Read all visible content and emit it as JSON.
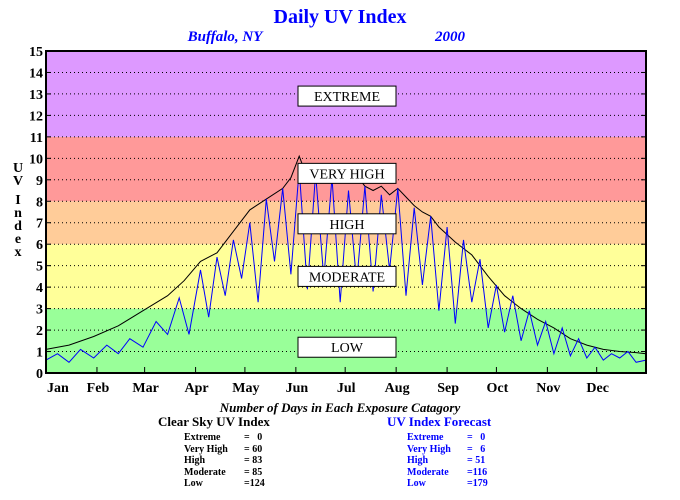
{
  "chart_data": {
    "type": "line",
    "title": "Daily UV Index",
    "location": "Buffalo, NY",
    "year": "2000",
    "ylabel": "UV Index",
    "ylim": [
      0,
      15
    ],
    "yticks": [
      0,
      1,
      2,
      3,
      4,
      5,
      6,
      7,
      8,
      9,
      10,
      11,
      12,
      13,
      14,
      15
    ],
    "xlim": [
      1,
      366
    ],
    "xticks": [
      {
        "label": "Jan",
        "day": 1
      },
      {
        "label": "Feb",
        "day": 32
      },
      {
        "label": "Mar",
        "day": 61
      },
      {
        "label": "Apr",
        "day": 92
      },
      {
        "label": "May",
        "day": 122
      },
      {
        "label": "Jun",
        "day": 153
      },
      {
        "label": "Jul",
        "day": 183
      },
      {
        "label": "Aug",
        "day": 214
      },
      {
        "label": "Sep",
        "day": 245
      },
      {
        "label": "Oct",
        "day": 275
      },
      {
        "label": "Nov",
        "day": 306
      },
      {
        "label": "Dec",
        "day": 336
      }
    ],
    "bands": [
      {
        "label": "LOW",
        "from": 0,
        "to": 3,
        "color": "#99ff99",
        "label_y": 1.2
      },
      {
        "label": "MODERATE",
        "from": 3,
        "to": 6,
        "color": "#ffff99",
        "label_y": 4.5
      },
      {
        "label": "HIGH",
        "from": 6,
        "to": 8,
        "color": "#ffcc99",
        "label_y": 6.95
      },
      {
        "label": "VERY HIGH",
        "from": 8,
        "to": 11,
        "color": "#ff9999",
        "label_y": 9.3
      },
      {
        "label": "EXTREME",
        "from": 11,
        "to": 15,
        "color": "#dd99ff",
        "label_y": 12.9
      }
    ],
    "grid": true,
    "series": [
      {
        "color": "#000000",
        "x": [
          1,
          15,
          30,
          45,
          60,
          75,
          85,
          95,
          105,
          115,
          125,
          135,
          145,
          150,
          155,
          160,
          165,
          170,
          175,
          180,
          185,
          190,
          195,
          200,
          205,
          210,
          215,
          220,
          225,
          230,
          235,
          240,
          250,
          260,
          270,
          280,
          290,
          300,
          310,
          320,
          330,
          340,
          350,
          360,
          366
        ],
        "y": [
          1.1,
          1.3,
          1.7,
          2.2,
          2.9,
          3.6,
          4.3,
          5.2,
          5.6,
          6.6,
          7.6,
          8.1,
          8.6,
          9.1,
          10.1,
          9.1,
          9.7,
          9.4,
          8.8,
          9.6,
          9.0,
          9.2,
          8.7,
          8.5,
          8.7,
          8.3,
          8.6,
          8.2,
          7.8,
          7.5,
          7.3,
          6.8,
          6.1,
          5.5,
          4.5,
          3.6,
          3.0,
          2.5,
          2.1,
          1.6,
          1.3,
          1.1,
          1.0,
          0.95,
          0.9
        ]
      },
      {
        "color": "#0000ff",
        "x": [
          1,
          8,
          15,
          22,
          30,
          38,
          45,
          52,
          60,
          68,
          75,
          82,
          88,
          95,
          100,
          105,
          110,
          115,
          120,
          125,
          130,
          135,
          140,
          145,
          150,
          155,
          160,
          165,
          170,
          175,
          180,
          185,
          190,
          195,
          200,
          205,
          210,
          215,
          220,
          225,
          230,
          235,
          240,
          245,
          250,
          255,
          260,
          265,
          270,
          275,
          280,
          285,
          290,
          295,
          300,
          305,
          310,
          315,
          320,
          325,
          330,
          335,
          340,
          345,
          350,
          355,
          360,
          366
        ],
        "y": [
          0.6,
          0.9,
          0.5,
          1.1,
          0.7,
          1.3,
          0.9,
          1.6,
          1.2,
          2.4,
          1.8,
          3.5,
          1.8,
          4.8,
          2.6,
          5.4,
          3.6,
          6.2,
          4.4,
          7.0,
          3.3,
          8.1,
          5.2,
          8.6,
          4.6,
          9.5,
          3.9,
          9.3,
          4.4,
          9.1,
          3.3,
          8.5,
          4.2,
          8.7,
          3.8,
          8.3,
          4.8,
          8.6,
          3.6,
          7.7,
          4.1,
          7.3,
          2.9,
          6.8,
          2.3,
          6.2,
          3.3,
          5.3,
          2.1,
          4.1,
          1.9,
          3.6,
          1.5,
          2.9,
          1.3,
          2.4,
          0.9,
          2.1,
          0.8,
          1.6,
          0.7,
          1.2,
          0.6,
          0.9,
          0.7,
          1.0,
          0.5,
          0.6
        ]
      }
    ]
  },
  "subtitle": "Number of Days in Each Exposure Catagory",
  "tables": [
    {
      "title": "Clear Sky UV Index",
      "color": "#000000",
      "rows": [
        {
          "label": "Extreme",
          "value": "=   0"
        },
        {
          "label": "Very High",
          "value": "= 60"
        },
        {
          "label": "High",
          "value": "= 83"
        },
        {
          "label": "Moderate",
          "value": "= 85"
        },
        {
          "label": "Low",
          "value": "=124"
        }
      ]
    },
    {
      "title": "UV Index Forecast",
      "color": "#0000ff",
      "rows": [
        {
          "label": "Extreme",
          "value": "=   0"
        },
        {
          "label": "Very High",
          "value": "=   6"
        },
        {
          "label": "High",
          "value": "= 51"
        },
        {
          "label": "Moderate",
          "value": "=116"
        },
        {
          "label": "Low",
          "value": "=179"
        }
      ]
    }
  ]
}
